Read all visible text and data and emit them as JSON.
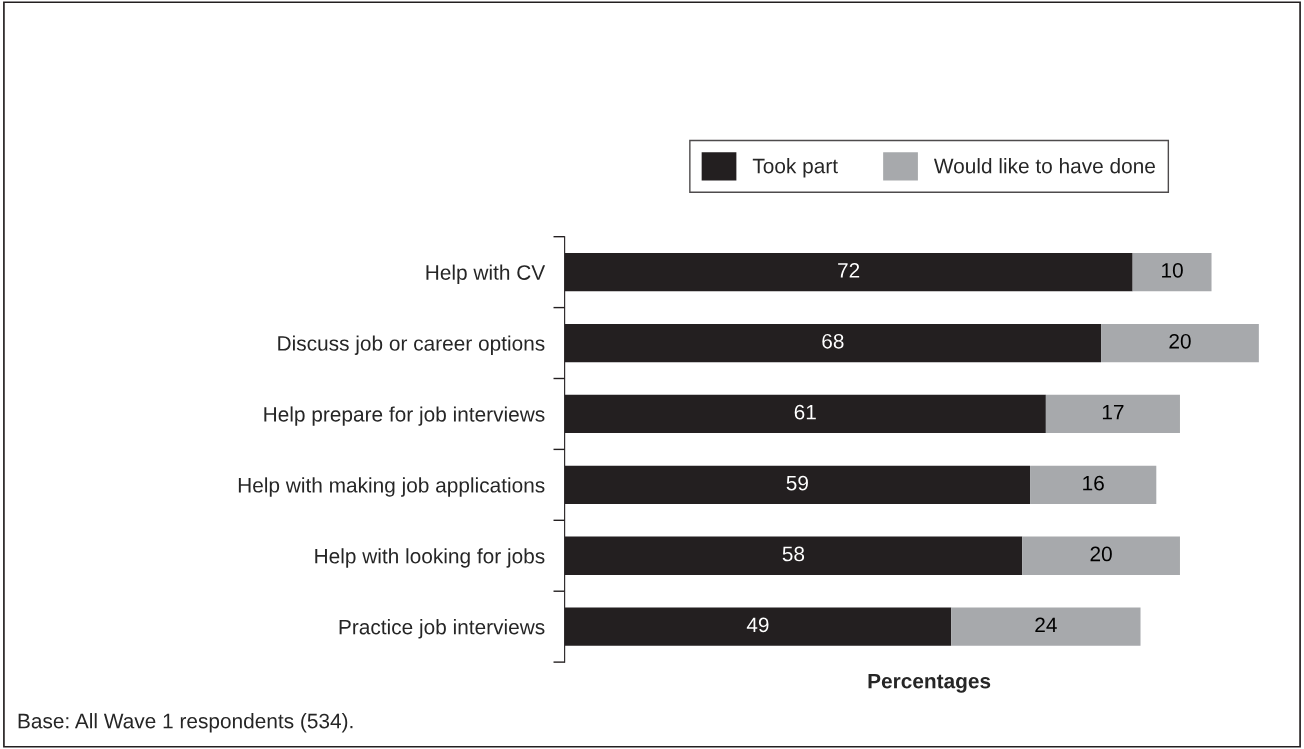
{
  "chart_data": {
    "type": "bar",
    "orientation": "horizontal",
    "stacked": true,
    "categories": [
      "Help with CV",
      "Discuss job or career options",
      "Help prepare for job interviews",
      "Help with making job applications",
      "Help with looking for jobs",
      "Practice job interviews"
    ],
    "series": [
      {
        "name": "Took part",
        "color": "#231f20",
        "values": [
          72,
          68,
          61,
          59,
          58,
          49
        ]
      },
      {
        "name": "Would like to have done",
        "color": "#a7a9ac",
        "values": [
          10,
          20,
          17,
          16,
          20,
          24
        ]
      }
    ],
    "xlabel": "Percentages",
    "tick_labels": "y",
    "data_labels": true,
    "legend": "top",
    "grid": false,
    "annotations": [
      "Base: All Wave 1 respondents (534)."
    ]
  }
}
